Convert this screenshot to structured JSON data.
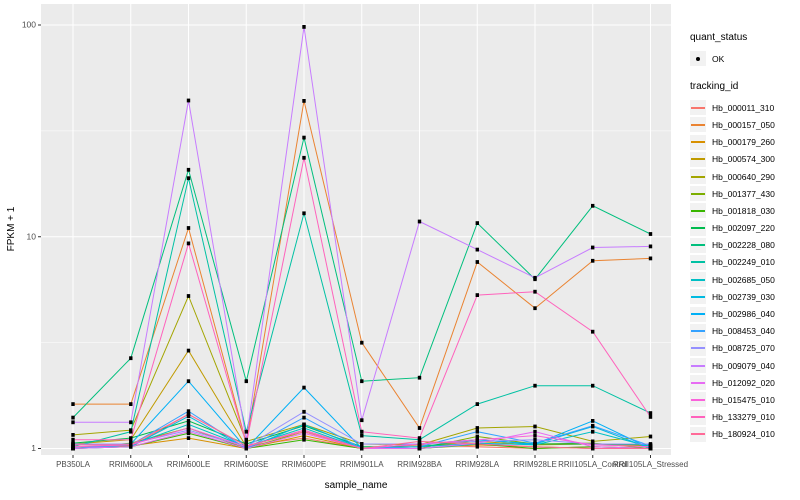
{
  "figure": {
    "background": "#FFFFFF",
    "panel_background": "#EBEBEB",
    "grid_color": "#FFFFFF",
    "tick_text_color": "#4D4D4D",
    "axis_title_color": "#000000",
    "legend_key_fill": "#F2F2F2",
    "point_color": "#000000"
  },
  "legend": {
    "quant_status_title": "quant_status",
    "quant_status_value": "OK",
    "tracking_id_title": "tracking_id"
  },
  "chart_data": {
    "type": "line",
    "title": "",
    "xlabel": "sample_name",
    "ylabel": "FPKM + 1",
    "y_scale": "log10",
    "ylim": [
      1,
      105
    ],
    "y_ticks": [
      1,
      10,
      100
    ],
    "y_tick_labels": [
      "1",
      "10",
      "100"
    ],
    "y_minor_ticks": [
      3.162,
      31.62
    ],
    "grid": true,
    "legend_position": "right",
    "point_shape": "filled-square",
    "quant_status_all": "OK",
    "categories": [
      "PB350LA",
      "RRIM600LA",
      "RRIM600LE",
      "RRIM600SE",
      "RRIM600PE",
      "RRIM901LA",
      "RRIM928BA",
      "RRIM928LA",
      "RRIM928LE",
      "RRII105LA_Control",
      "RRII105LA_Stressed"
    ],
    "series": [
      {
        "name": "Hb_000011_310",
        "color": "#F8766D",
        "values": [
          1.02,
          1.02,
          1.45,
          1.03,
          1.12,
          1.0,
          1.04,
          1.02,
          1.0,
          1.02,
          1.0
        ]
      },
      {
        "name": "Hb_000157_050",
        "color": "#EA8331",
        "values": [
          1.62,
          1.62,
          11.0,
          1.06,
          43.8,
          3.16,
          1.25,
          7.6,
          4.6,
          7.7,
          7.9
        ]
      },
      {
        "name": "Hb_000179_260",
        "color": "#D89000",
        "values": [
          1.0,
          1.03,
          1.12,
          1.0,
          1.15,
          1.0,
          1.0,
          1.04,
          1.02,
          1.0,
          1.0
        ]
      },
      {
        "name": "Hb_000574_300",
        "color": "#C09B00",
        "values": [
          1.05,
          1.1,
          2.9,
          1.02,
          1.22,
          1.0,
          1.02,
          1.08,
          1.04,
          1.05,
          1.03
        ]
      },
      {
        "name": "Hb_000640_290",
        "color": "#A3A500",
        "values": [
          1.16,
          1.22,
          5.25,
          1.08,
          1.3,
          1.05,
          1.04,
          1.25,
          1.27,
          1.08,
          1.14
        ]
      },
      {
        "name": "Hb_001377_430",
        "color": "#7CAE00",
        "values": [
          1.0,
          1.06,
          1.25,
          1.0,
          1.2,
          1.0,
          1.0,
          1.14,
          1.05,
          1.06,
          1.0
        ]
      },
      {
        "name": "Hb_001818_030",
        "color": "#39B600",
        "values": [
          1.0,
          1.02,
          1.18,
          1.0,
          1.1,
          1.0,
          1.0,
          1.05,
          1.0,
          1.02,
          1.0
        ]
      },
      {
        "name": "Hb_002097_220",
        "color": "#00BB4E",
        "values": [
          1.06,
          1.12,
          1.35,
          1.05,
          1.28,
          1.02,
          1.02,
          1.1,
          1.05,
          1.05,
          1.04
        ]
      },
      {
        "name": "Hb_002228_080",
        "color": "#00BF7D",
        "values": [
          1.4,
          2.67,
          20.7,
          2.08,
          29.4,
          2.08,
          2.16,
          11.6,
          6.3,
          14.0,
          10.3
        ]
      },
      {
        "name": "Hb_002249_010",
        "color": "#00C1A3",
        "values": [
          1.02,
          1.2,
          18.9,
          1.2,
          12.9,
          1.15,
          1.1,
          1.62,
          1.98,
          1.98,
          1.47
        ]
      },
      {
        "name": "Hb_002685_050",
        "color": "#00BFC4",
        "values": [
          1.0,
          1.04,
          1.3,
          1.02,
          1.25,
          1.0,
          1.02,
          1.06,
          1.04,
          1.2,
          1.02
        ]
      },
      {
        "name": "Hb_002739_030",
        "color": "#00BAE0",
        "values": [
          1.0,
          1.02,
          1.42,
          1.0,
          1.3,
          1.0,
          1.0,
          1.05,
          1.05,
          1.27,
          1.0
        ]
      },
      {
        "name": "Hb_002986_040",
        "color": "#00B0F6",
        "values": [
          1.0,
          1.05,
          2.08,
          1.0,
          1.94,
          1.0,
          1.05,
          1.1,
          1.05,
          1.35,
          1.0
        ]
      },
      {
        "name": "Hb_008453_040",
        "color": "#35A2FF",
        "values": [
          1.0,
          1.04,
          1.5,
          1.0,
          1.4,
          1.0,
          1.02,
          1.2,
          1.06,
          1.28,
          1.03
        ]
      },
      {
        "name": "Hb_008725_070",
        "color": "#9590FF",
        "values": [
          1.05,
          1.05,
          1.22,
          1.02,
          1.49,
          1.05,
          1.05,
          1.08,
          1.1,
          1.05,
          1.05
        ]
      },
      {
        "name": "Hb_009079_040",
        "color": "#C77CFF",
        "values": [
          1.33,
          1.33,
          44.0,
          1.1,
          98.0,
          1.36,
          11.8,
          8.7,
          6.4,
          8.9,
          9.0
        ]
      },
      {
        "name": "Hb_012092_020",
        "color": "#E76BF3",
        "values": [
          1.0,
          1.02,
          1.2,
          1.0,
          1.18,
          1.0,
          1.0,
          1.06,
          1.2,
          1.02,
          1.0
        ]
      },
      {
        "name": "Hb_015475_010",
        "color": "#FA62DB",
        "values": [
          1.02,
          1.04,
          1.25,
          1.02,
          1.22,
          1.0,
          1.05,
          1.1,
          1.15,
          1.04,
          1.02
        ]
      },
      {
        "name": "Hb_133279_010",
        "color": "#FF62BC",
        "values": [
          1.1,
          1.1,
          9.3,
          1.05,
          23.6,
          1.2,
          1.12,
          5.3,
          5.5,
          3.56,
          1.41
        ]
      },
      {
        "name": "Hb_180924_010",
        "color": "#FF6A98",
        "values": [
          1.04,
          1.04,
          1.45,
          1.03,
          1.2,
          1.0,
          1.08,
          1.05,
          1.02,
          1.0,
          1.0
        ]
      }
    ]
  }
}
